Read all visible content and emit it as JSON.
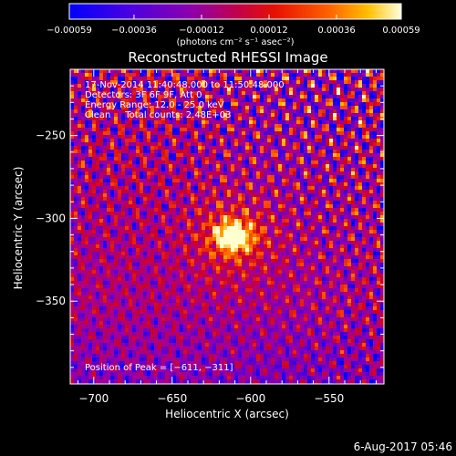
{
  "chart_data": {
    "type": "heatmap",
    "title": "Reconstructed RHESSI Image",
    "xlabel": "Heliocentric X (arcsec)",
    "ylabel": "Heliocentric Y (arcsec)",
    "xlim": [
      -715,
      -515
    ],
    "ylim": [
      -400,
      -210
    ],
    "x_ticks": [
      -700,
      -650,
      -600,
      -550
    ],
    "x_tick_labels": [
      "−700",
      "−650",
      "−600",
      "−550"
    ],
    "y_ticks": [
      -250,
      -300,
      -350
    ],
    "y_tick_labels": [
      "−250",
      "−300",
      "−350"
    ],
    "colorbar": {
      "range": [
        -0.00059,
        0.00059
      ],
      "ticks": [
        -0.00059,
        -0.00036,
        -0.00012,
        0.00012,
        0.00036,
        0.00059
      ],
      "tick_labels": [
        "−0.00059",
        "−0.00036",
        "−0.00012",
        "0.00012",
        "0.00036",
        "0.00059"
      ],
      "units": "(photons cm⁻² s⁻¹ asec⁻²)",
      "colormap": [
        "#0000ff",
        "#5a00d0",
        "#a000a0",
        "#d00020",
        "#ff5000",
        "#ffb000",
        "#ffffd0"
      ]
    },
    "peak": {
      "x": -611,
      "y": -311
    },
    "annotations": [
      "17-Nov-2014 11:40:48.000 to 11:50:48.000",
      "Detectors: 3F 6F 9F, Att 0",
      "Energy Range: 12.0 - 25.0 keV",
      "Clean     Total counts: 2.48E+03"
    ],
    "peak_label": "Position of Peak = [−611, −311]"
  },
  "footer": {
    "timestamp": "6-Aug-2017 05:46"
  }
}
